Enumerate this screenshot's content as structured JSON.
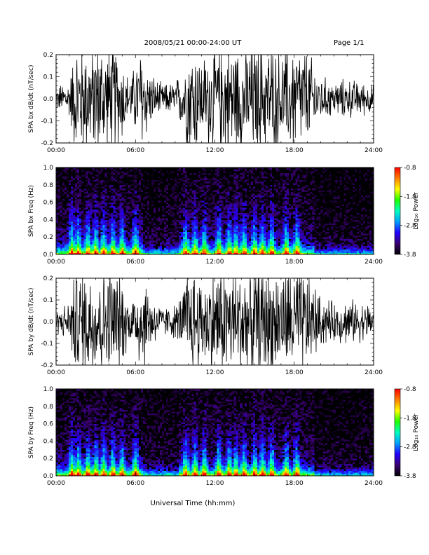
{
  "header": {
    "title": "2008/05/21   00:00-24:00 UT",
    "page": "Page 1/1"
  },
  "x_axis": {
    "label": "Universal Time (hh:mm)",
    "ticks": [
      "00:00",
      "06:00",
      "12:00",
      "18:00",
      "24:00"
    ],
    "range_hours": [
      0,
      24
    ]
  },
  "chart_data": [
    {
      "type": "line",
      "ylabel": "SPA bx dB/dt (nT/sec)",
      "ylim": [
        -0.2,
        0.2
      ],
      "yticks": [
        "-0.2",
        "-0.1",
        "0.0",
        "0.1",
        "0.2"
      ],
      "xlim_hours": [
        0,
        24
      ],
      "color": "#000000",
      "activity_envelope": {
        "hours": [
          0,
          1,
          1.5,
          2,
          3,
          4,
          4.5,
          5,
          5.5,
          6,
          6.5,
          7,
          8,
          9,
          9.5,
          10,
          10.5,
          11,
          12,
          13,
          14,
          15,
          16,
          17,
          18,
          19,
          20,
          21,
          22,
          23,
          24
        ],
        "amplitude": [
          0.04,
          0.07,
          0.2,
          0.2,
          0.2,
          0.2,
          0.2,
          0.15,
          0.07,
          0.12,
          0.2,
          0.1,
          0.05,
          0.06,
          0.1,
          0.2,
          0.2,
          0.14,
          0.2,
          0.2,
          0.2,
          0.2,
          0.2,
          0.16,
          0.2,
          0.17,
          0.08,
          0.06,
          0.07,
          0.06,
          0.05
        ]
      }
    },
    {
      "type": "heatmap",
      "ylabel": "SPA bx Freq (Hz)",
      "ylim": [
        0.0,
        1.0
      ],
      "yticks": [
        "0.0",
        "0.2",
        "0.4",
        "0.6",
        "0.8",
        "1.0"
      ],
      "xlim_hours": [
        0,
        24
      ],
      "colorbar": {
        "label": "Log₁₀ Power",
        "range": [
          -3.8,
          -0.8
        ],
        "ticks": [
          "-0.8",
          "-1.8",
          "-2.8",
          "-3.8"
        ],
        "colors": [
          "#000000",
          "#3a0070",
          "#2200ff",
          "#00a0ff",
          "#00ffc0",
          "#20ff00",
          "#ffff00",
          "#ff8000",
          "#ff0000"
        ]
      },
      "bursts_hours": [
        1.2,
        1.7,
        2.4,
        3.0,
        3.6,
        4.3,
        5.0,
        6.0,
        9.8,
        10.5,
        11.2,
        12.3,
        13.1,
        13.6,
        14.2,
        15.0,
        15.6,
        16.3,
        17.4,
        18.2
      ]
    },
    {
      "type": "line",
      "ylabel": "SPA by dB/dt (nT/sec)",
      "ylim": [
        -0.2,
        0.2
      ],
      "yticks": [
        "-0.2",
        "-0.1",
        "0.0",
        "0.1",
        "0.2"
      ],
      "xlim_hours": [
        0,
        24
      ],
      "color": "#000000",
      "activity_envelope": {
        "hours": [
          0,
          1,
          1.5,
          2,
          3,
          4,
          4.5,
          5,
          5.5,
          6,
          6.5,
          7,
          8,
          9,
          9.5,
          10,
          10.5,
          11,
          12,
          13,
          14,
          15,
          16,
          17,
          18,
          19,
          20,
          21,
          22,
          23,
          24
        ],
        "amplitude": [
          0.04,
          0.07,
          0.2,
          0.2,
          0.2,
          0.2,
          0.2,
          0.16,
          0.07,
          0.12,
          0.2,
          0.11,
          0.05,
          0.06,
          0.1,
          0.2,
          0.2,
          0.15,
          0.2,
          0.2,
          0.2,
          0.2,
          0.2,
          0.17,
          0.2,
          0.18,
          0.09,
          0.07,
          0.08,
          0.07,
          0.06
        ]
      }
    },
    {
      "type": "heatmap",
      "ylabel": "SPA by Freq (Hz)",
      "ylim": [
        0.0,
        1.0
      ],
      "yticks": [
        "0.0",
        "0.2",
        "0.4",
        "0.6",
        "0.8",
        "1.0"
      ],
      "xlim_hours": [
        0,
        24
      ],
      "colorbar": {
        "label": "Log₁₀ Power",
        "range": [
          -3.8,
          -0.8
        ],
        "ticks": [
          "-0.8",
          "-1.8",
          "-2.8",
          "-3.8"
        ],
        "colors": [
          "#000000",
          "#3a0070",
          "#2200ff",
          "#00a0ff",
          "#00ffc0",
          "#20ff00",
          "#ffff00",
          "#ff8000",
          "#ff0000"
        ]
      },
      "bursts_hours": [
        1.2,
        1.7,
        2.4,
        3.0,
        3.6,
        4.3,
        5.0,
        6.0,
        9.8,
        10.5,
        11.2,
        12.3,
        13.1,
        13.6,
        14.2,
        15.0,
        15.6,
        16.3,
        17.4,
        18.2
      ]
    }
  ]
}
